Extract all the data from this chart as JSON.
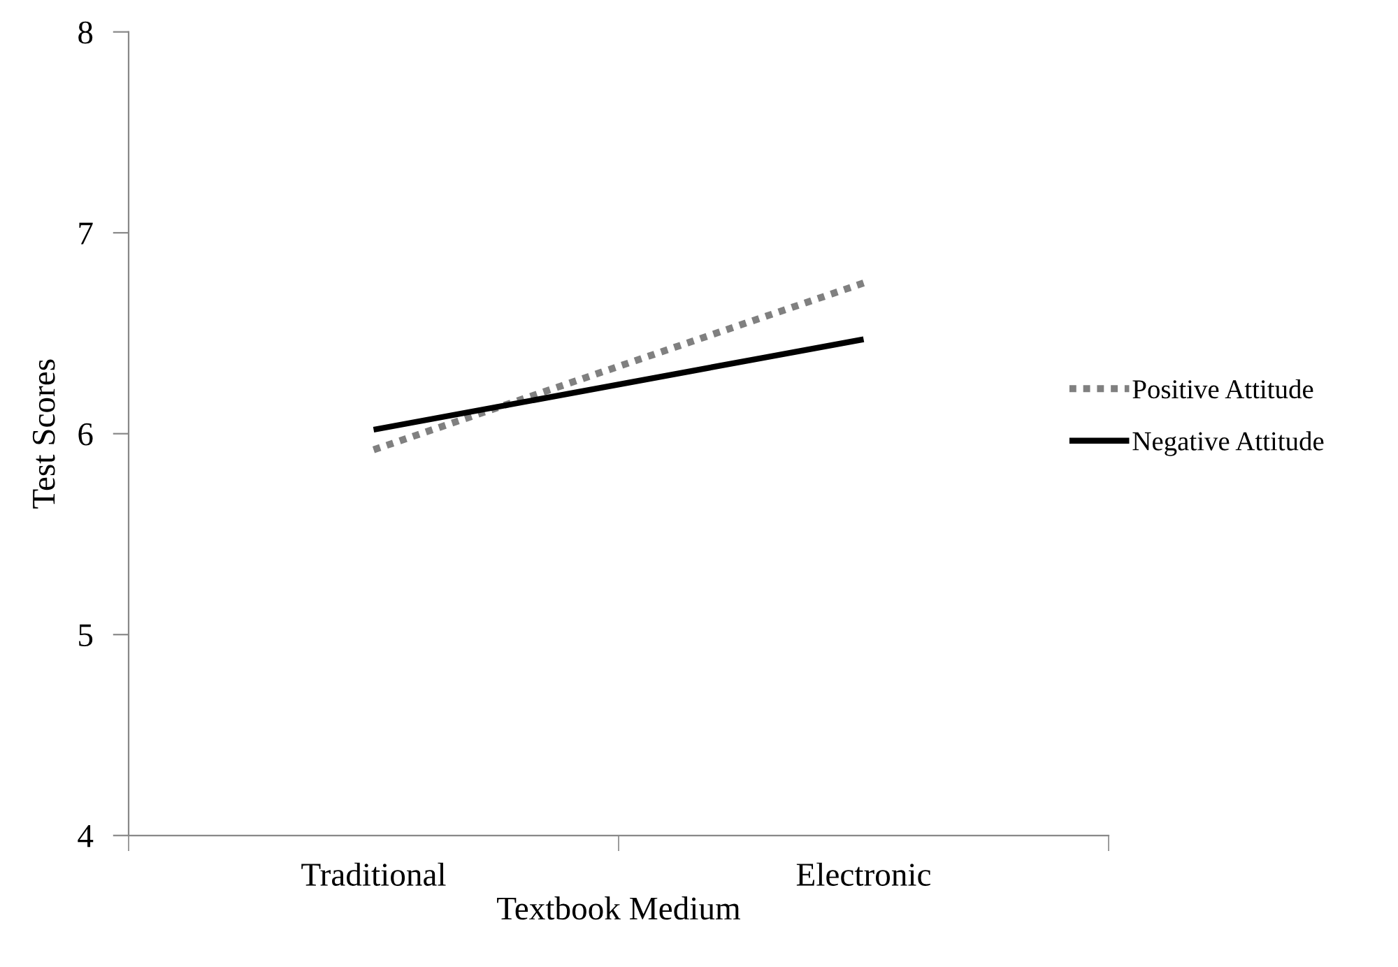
{
  "chart_data": {
    "type": "line",
    "xlabel": "Textbook Medium",
    "ylabel": "Test Scores",
    "categories": [
      "Traditional",
      "Electronic"
    ],
    "series": [
      {
        "name": "Positive Attitude",
        "color": "#808080",
        "line_style": "dotted",
        "values": [
          5.92,
          6.75
        ]
      },
      {
        "name": "Negative Attitude",
        "color": "#000000",
        "line_style": "solid",
        "values": [
          6.02,
          6.47
        ]
      }
    ],
    "ylim": [
      4,
      8
    ],
    "yticks": [
      4,
      5,
      6,
      7,
      8
    ],
    "grid": false,
    "legend": "right",
    "marker": "none"
  }
}
